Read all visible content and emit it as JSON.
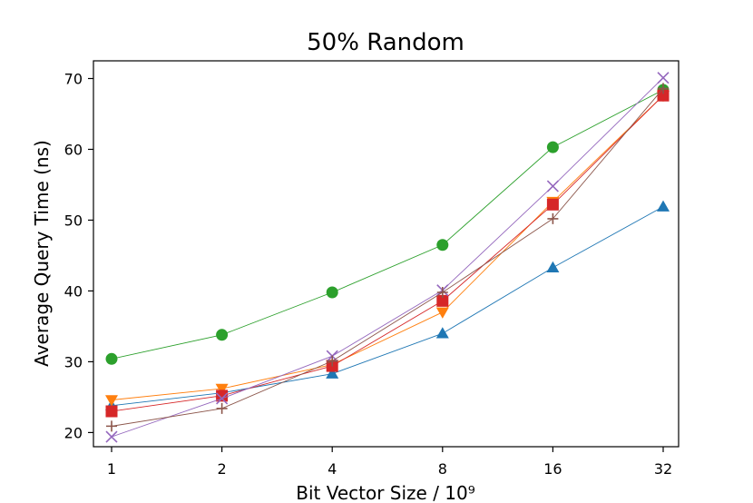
{
  "chart_data": {
    "type": "line",
    "title": "50% Random",
    "xlabel": "Bit Vector Size / 10⁹",
    "ylabel": "Average Query Time (ns)",
    "x_scale": "log2",
    "categories": [
      "1",
      "2",
      "4",
      "8",
      "16",
      "32"
    ],
    "x": [
      1,
      2,
      4,
      8,
      16,
      32
    ],
    "ylim": [
      18,
      72.5
    ],
    "yticks": [
      20,
      30,
      40,
      50,
      60,
      70
    ],
    "grid": false,
    "legend": "none",
    "series": [
      {
        "color": "#1f77b4",
        "marker": "triangle-up",
        "values": [
          23.8,
          25.6,
          28.3,
          34.0,
          43.3,
          51.9
        ]
      },
      {
        "color": "#ff7f0e",
        "marker": "triangle-down",
        "values": [
          24.6,
          26.2,
          29.6,
          37.0,
          52.6,
          67.6
        ]
      },
      {
        "color": "#2ca02c",
        "marker": "circle",
        "values": [
          30.4,
          33.8,
          39.8,
          46.5,
          60.3,
          68.4
        ]
      },
      {
        "color": "#d62728",
        "marker": "square",
        "values": [
          23.0,
          25.2,
          29.4,
          38.6,
          52.2,
          67.6
        ]
      },
      {
        "color": "#9467bd",
        "marker": "x",
        "values": [
          19.4,
          24.8,
          30.8,
          40.1,
          54.8,
          70.1
        ]
      },
      {
        "color": "#8c564b",
        "marker": "plus",
        "values": [
          20.9,
          23.4,
          30.1,
          39.8,
          50.2,
          68.6
        ]
      }
    ]
  }
}
